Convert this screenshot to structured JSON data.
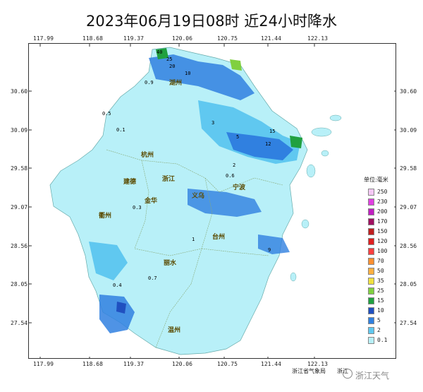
{
  "title": "2023年06月19日08时  近24小时降水",
  "axes": {
    "lon_ticks": [
      "117.99",
      "118.68",
      "119.37",
      "120.06",
      "120.75",
      "121.44",
      "122.13"
    ],
    "lat_ticks": [
      "30.60",
      "30.09",
      "29.58",
      "29.07",
      "28.56",
      "28.05",
      "27.54"
    ]
  },
  "legend": {
    "title": "单位:毫米",
    "items": [
      {
        "value": "250",
        "color": "#f5c8f5"
      },
      {
        "value": "230",
        "color": "#e040e0"
      },
      {
        "value": "200",
        "color": "#c020c0"
      },
      {
        "value": "170",
        "color": "#a01060"
      },
      {
        "value": "150",
        "color": "#c02020"
      },
      {
        "value": "120",
        "color": "#e02020"
      },
      {
        "value": "100",
        "color": "#ff4040"
      },
      {
        "value": "70",
        "color": "#ff9030"
      },
      {
        "value": "50",
        "color": "#ffb040"
      },
      {
        "value": "35",
        "color": "#f0e040"
      },
      {
        "value": "25",
        "color": "#80d040"
      },
      {
        "value": "15",
        "color": "#20a040"
      },
      {
        "value": "10",
        "color": "#2050c0"
      },
      {
        "value": "5",
        "color": "#3080e0"
      },
      {
        "value": "2",
        "color": "#60c8f0"
      },
      {
        "value": "0.1",
        "color": "#b8f0f8"
      }
    ]
  },
  "cities": [
    "湖州",
    "杭州",
    "建德",
    "浙江",
    "义乌",
    "衢州",
    "金华",
    "丽水",
    "台州",
    "温州",
    "宁波"
  ],
  "sample_values": [
    "0.9",
    "0.5",
    "0.1",
    "3",
    "5",
    "10",
    "12",
    "20",
    "25",
    "40",
    "0.3",
    "1",
    "2",
    "0.6",
    "0.4",
    "0.7",
    "15",
    "9"
  ],
  "source": "浙江省气象局",
  "source2": "浙江",
  "watermark": "浙江天气"
}
